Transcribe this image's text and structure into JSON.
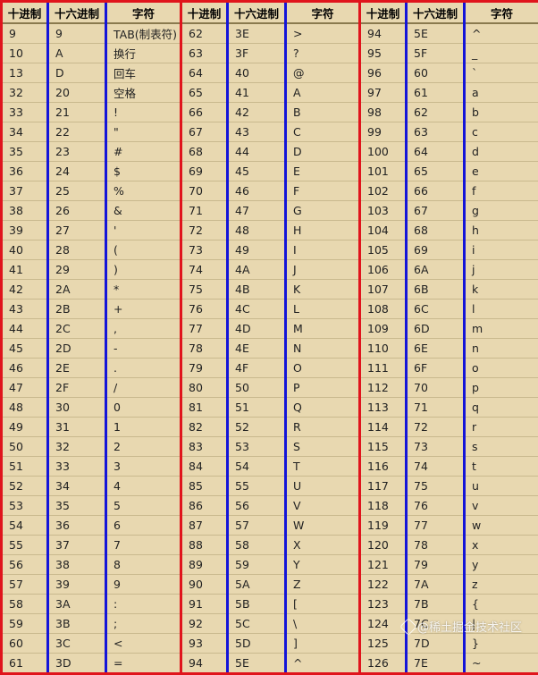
{
  "table": {
    "headers": [
      "十进制",
      "十六进制",
      "字符",
      "十进制",
      "十六进制",
      "字符",
      "十进制",
      "十六进制",
      "字符"
    ],
    "rows": [
      [
        "9",
        "9",
        "TAB(制表符)",
        "62",
        "3E",
        ">",
        "94",
        "5E",
        "^"
      ],
      [
        "10",
        "A",
        "换行",
        "63",
        "3F",
        "?",
        "95",
        "5F",
        "_"
      ],
      [
        "13",
        "D",
        "回车",
        "64",
        "40",
        "@",
        "96",
        "60",
        "`"
      ],
      [
        "32",
        "20",
        "空格",
        "65",
        "41",
        "A",
        "97",
        "61",
        "a"
      ],
      [
        "33",
        "21",
        "!",
        "66",
        "42",
        "B",
        "98",
        "62",
        "b"
      ],
      [
        "34",
        "22",
        "\"",
        "67",
        "43",
        "C",
        "99",
        "63",
        "c"
      ],
      [
        "35",
        "23",
        "#",
        "68",
        "44",
        "D",
        "100",
        "64",
        "d"
      ],
      [
        "36",
        "24",
        "$",
        "69",
        "45",
        "E",
        "101",
        "65",
        "e"
      ],
      [
        "37",
        "25",
        "%",
        "70",
        "46",
        "F",
        "102",
        "66",
        "f"
      ],
      [
        "38",
        "26",
        "&",
        "71",
        "47",
        "G",
        "103",
        "67",
        "g"
      ],
      [
        "39",
        "27",
        "'",
        "72",
        "48",
        "H",
        "104",
        "68",
        "h"
      ],
      [
        "40",
        "28",
        "(",
        "73",
        "49",
        "I",
        "105",
        "69",
        "i"
      ],
      [
        "41",
        "29",
        ")",
        "74",
        "4A",
        "J",
        "106",
        "6A",
        "j"
      ],
      [
        "42",
        "2A",
        "*",
        "75",
        "4B",
        "K",
        "107",
        "6B",
        "k"
      ],
      [
        "43",
        "2B",
        "+",
        "76",
        "4C",
        "L",
        "108",
        "6C",
        "l"
      ],
      [
        "44",
        "2C",
        ",",
        "77",
        "4D",
        "M",
        "109",
        "6D",
        "m"
      ],
      [
        "45",
        "2D",
        "-",
        "78",
        "4E",
        "N",
        "110",
        "6E",
        "n"
      ],
      [
        "46",
        "2E",
        ".",
        "79",
        "4F",
        "O",
        "111",
        "6F",
        "o"
      ],
      [
        "47",
        "2F",
        "/",
        "80",
        "50",
        "P",
        "112",
        "70",
        "p"
      ],
      [
        "48",
        "30",
        "0",
        "81",
        "51",
        "Q",
        "113",
        "71",
        "q"
      ],
      [
        "49",
        "31",
        "1",
        "82",
        "52",
        "R",
        "114",
        "72",
        "r"
      ],
      [
        "50",
        "32",
        "2",
        "83",
        "53",
        "S",
        "115",
        "73",
        "s"
      ],
      [
        "51",
        "33",
        "3",
        "84",
        "54",
        "T",
        "116",
        "74",
        "t"
      ],
      [
        "52",
        "34",
        "4",
        "85",
        "55",
        "U",
        "117",
        "75",
        "u"
      ],
      [
        "53",
        "35",
        "5",
        "86",
        "56",
        "V",
        "118",
        "76",
        "v"
      ],
      [
        "54",
        "36",
        "6",
        "87",
        "57",
        "W",
        "119",
        "77",
        "w"
      ],
      [
        "55",
        "37",
        "7",
        "88",
        "58",
        "X",
        "120",
        "78",
        "x"
      ],
      [
        "56",
        "38",
        "8",
        "89",
        "59",
        "Y",
        "121",
        "79",
        "y"
      ],
      [
        "57",
        "39",
        "9",
        "90",
        "5A",
        "Z",
        "122",
        "7A",
        "z"
      ],
      [
        "58",
        "3A",
        ":",
        "91",
        "5B",
        "[",
        "123",
        "7B",
        "{"
      ],
      [
        "59",
        "3B",
        ";",
        "92",
        "5C",
        "\\",
        "124",
        "7C",
        "|"
      ],
      [
        "60",
        "3C",
        "<",
        "93",
        "5D",
        "]",
        "125",
        "7D",
        "}"
      ],
      [
        "61",
        "3D",
        "=",
        "94",
        "5E",
        "^",
        "126",
        "7E",
        "~"
      ]
    ]
  },
  "watermark": {
    "text": "@稀土掘金技术社区"
  },
  "colors": {
    "group_border": "#e0141c",
    "column_border": "#1414d8",
    "cell_background": "#e8d8b0"
  }
}
